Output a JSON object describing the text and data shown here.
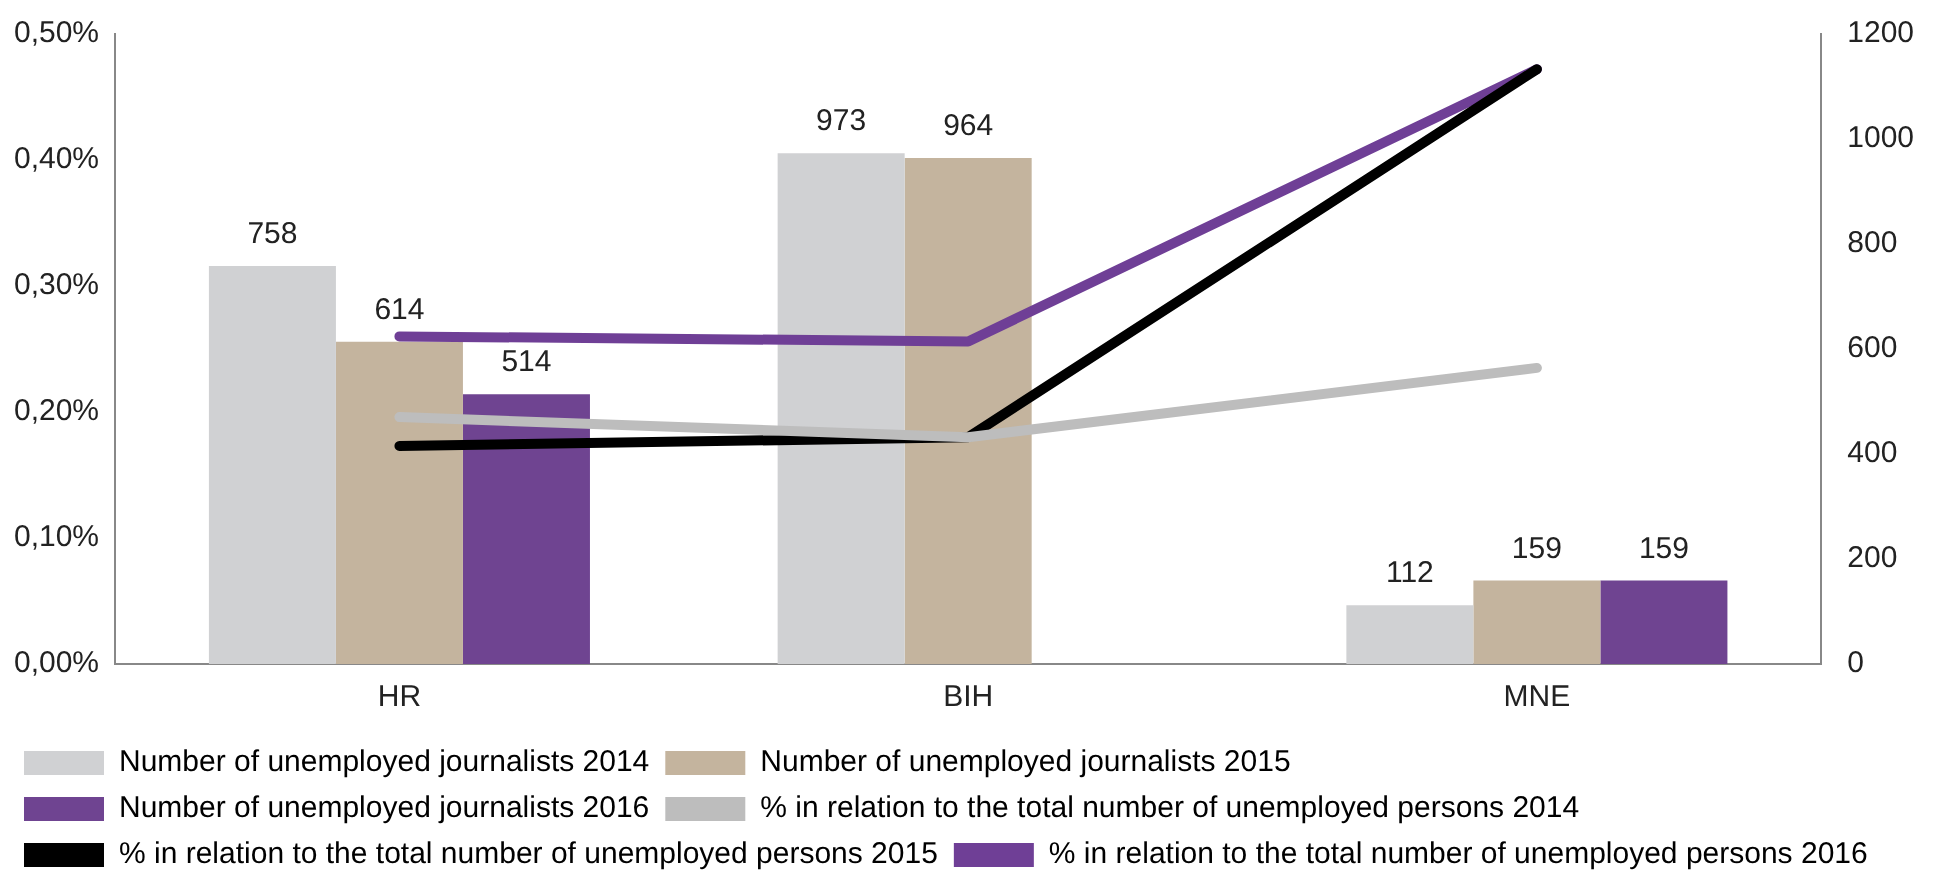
{
  "chart_data": {
    "type": "bar",
    "categories": [
      "HR",
      "BIH",
      "MNE"
    ],
    "series": [
      {
        "name": "Number of unemployed journalists 2014",
        "axis": "y2",
        "color": "#d0d1d3",
        "values": [
          758,
          973,
          112
        ],
        "value_labels": [
          "758",
          "973",
          "112"
        ]
      },
      {
        "name": "Number of unemployed journalists 2015",
        "axis": "y2",
        "color": "#c4b49e",
        "values": [
          614,
          964,
          159
        ],
        "value_labels": [
          "614",
          "964",
          "159"
        ]
      },
      {
        "name": "Number of unemployed journalists 2016",
        "axis": "y2",
        "color": "#6f4491",
        "values": [
          514,
          null,
          159
        ],
        "value_labels": [
          "514",
          null,
          "159"
        ]
      },
      {
        "name": "% in relation to the total number of unemployed persons 2014",
        "type": "line",
        "color": "#bdbdbd",
        "values": [
          0.196,
          0.18,
          0.235
        ]
      },
      {
        "name": "% in relation to the total number of unemployed persons 2015",
        "type": "line",
        "color": "#000000",
        "values": [
          0.173,
          0.18,
          0.472
        ]
      },
      {
        "name": "% in relation to the total number of unemployed persons 2016",
        "type": "line",
        "color": "#6f3f96",
        "values": [
          0.26,
          0.256,
          0.472
        ]
      }
    ],
    "ylim": [
      0,
      0.5
    ],
    "yticks": [
      {
        "value": 0,
        "label": "0,00%"
      },
      {
        "value": 0.1,
        "label": "0,10%"
      },
      {
        "value": 0.2,
        "label": "0,20%"
      },
      {
        "value": 0.3,
        "label": "0,30%"
      },
      {
        "value": 0.4,
        "label": "0,40%"
      },
      {
        "value": 0.5,
        "label": "0,50%"
      }
    ],
    "y2lim": [
      0,
      1200
    ],
    "y2ticks": [
      0,
      200,
      400,
      600,
      800,
      1000,
      1200
    ],
    "grid": false,
    "legend": "bottom",
    "marker": "none",
    "line_style": "solid"
  }
}
